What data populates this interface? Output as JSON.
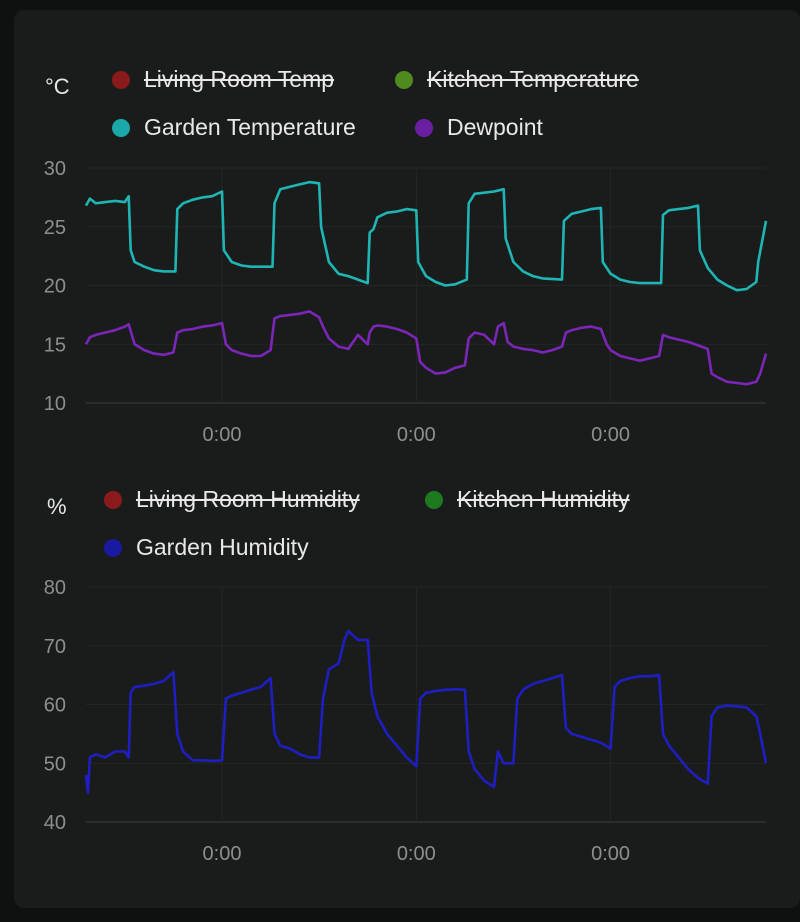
{
  "temperature_panel": {
    "unit": "°C",
    "legend": [
      {
        "label": "Living Room Temp",
        "color": "#8b1a1a",
        "hidden": true
      },
      {
        "label": "Kitchen Temperature",
        "color": "#4e8a1e",
        "hidden": true
      },
      {
        "label": "Garden Temperature",
        "color": "#1aa8a8",
        "hidden": false
      },
      {
        "label": "Dewpoint",
        "color": "#6a1fa3",
        "hidden": false
      }
    ]
  },
  "humidity_panel": {
    "unit": "%",
    "legend": [
      {
        "label": "Living Room Humidity",
        "color": "#8b1a1a",
        "hidden": true
      },
      {
        "label": "Kitchen Humidity",
        "color": "#1f7a1f",
        "hidden": true
      },
      {
        "label": "Garden Humidity",
        "color": "#1a1aa0",
        "hidden": false
      }
    ]
  },
  "chart_data": [
    {
      "type": "line",
      "ylabel": "°C",
      "ylim": [
        10,
        30
      ],
      "yticks": [
        10,
        15,
        20,
        25,
        30
      ],
      "xticks": [
        "0:00",
        "0:00",
        "0:00"
      ],
      "xlim": [
        0,
        3.5
      ],
      "xtick_positions": [
        0.7,
        1.7,
        2.7
      ],
      "grid": true,
      "series": [
        {
          "name": "Garden Temperature",
          "color": "#1fb5b5",
          "points": [
            [
              0,
              26.8
            ],
            [
              0.02,
              27.4
            ],
            [
              0.05,
              27
            ],
            [
              0.1,
              27.1
            ],
            [
              0.15,
              27.2
            ],
            [
              0.2,
              27.1
            ],
            [
              0.22,
              27.6
            ],
            [
              0.23,
              23
            ],
            [
              0.25,
              22
            ],
            [
              0.3,
              21.6
            ],
            [
              0.35,
              21.3
            ],
            [
              0.4,
              21.2
            ],
            [
              0.46,
              21.2
            ],
            [
              0.47,
              26.5
            ],
            [
              0.5,
              27
            ],
            [
              0.55,
              27.3
            ],
            [
              0.6,
              27.5
            ],
            [
              0.65,
              27.6
            ],
            [
              0.7,
              28
            ],
            [
              0.71,
              23
            ],
            [
              0.75,
              22
            ],
            [
              0.8,
              21.7
            ],
            [
              0.85,
              21.6
            ],
            [
              0.96,
              21.6
            ],
            [
              0.97,
              27
            ],
            [
              1.0,
              28.2
            ],
            [
              1.05,
              28.4
            ],
            [
              1.1,
              28.6
            ],
            [
              1.15,
              28.8
            ],
            [
              1.2,
              28.7
            ],
            [
              1.21,
              25
            ],
            [
              1.25,
              22
            ],
            [
              1.3,
              21
            ],
            [
              1.35,
              20.8
            ],
            [
              1.4,
              20.5
            ],
            [
              1.45,
              20.2
            ],
            [
              1.46,
              24.5
            ],
            [
              1.48,
              24.8
            ],
            [
              1.5,
              25.8
            ],
            [
              1.55,
              26.2
            ],
            [
              1.6,
              26.3
            ],
            [
              1.65,
              26.5
            ],
            [
              1.7,
              26.4
            ],
            [
              1.71,
              22
            ],
            [
              1.75,
              20.8
            ],
            [
              1.8,
              20.3
            ],
            [
              1.85,
              20
            ],
            [
              1.9,
              20.1
            ],
            [
              1.96,
              20.5
            ],
            [
              1.97,
              27
            ],
            [
              2.0,
              27.8
            ],
            [
              2.05,
              27.9
            ],
            [
              2.1,
              28
            ],
            [
              2.15,
              28.2
            ],
            [
              2.16,
              24
            ],
            [
              2.2,
              22
            ],
            [
              2.25,
              21.2
            ],
            [
              2.3,
              20.8
            ],
            [
              2.35,
              20.6
            ],
            [
              2.45,
              20.5
            ],
            [
              2.46,
              25.5
            ],
            [
              2.5,
              26.1
            ],
            [
              2.55,
              26.3
            ],
            [
              2.6,
              26.5
            ],
            [
              2.65,
              26.6
            ],
            [
              2.66,
              22
            ],
            [
              2.7,
              21
            ],
            [
              2.75,
              20.5
            ],
            [
              2.8,
              20.3
            ],
            [
              2.85,
              20.2
            ],
            [
              2.96,
              20.2
            ],
            [
              2.97,
              26
            ],
            [
              3.0,
              26.4
            ],
            [
              3.05,
              26.5
            ],
            [
              3.1,
              26.6
            ],
            [
              3.15,
              26.8
            ],
            [
              3.16,
              23
            ],
            [
              3.2,
              21.5
            ],
            [
              3.25,
              20.5
            ],
            [
              3.3,
              20
            ],
            [
              3.35,
              19.6
            ],
            [
              3.4,
              19.7
            ],
            [
              3.45,
              20.3
            ],
            [
              3.46,
              22
            ],
            [
              3.5,
              25.5
            ]
          ]
        },
        {
          "name": "Dewpoint",
          "color": "#7b26b8",
          "points": [
            [
              0,
              15
            ],
            [
              0.02,
              15.6
            ],
            [
              0.05,
              15.8
            ],
            [
              0.1,
              16
            ],
            [
              0.15,
              16.2
            ],
            [
              0.2,
              16.5
            ],
            [
              0.22,
              16.7
            ],
            [
              0.25,
              15
            ],
            [
              0.3,
              14.5
            ],
            [
              0.35,
              14.2
            ],
            [
              0.4,
              14.1
            ],
            [
              0.45,
              14.3
            ],
            [
              0.47,
              16
            ],
            [
              0.5,
              16.2
            ],
            [
              0.55,
              16.3
            ],
            [
              0.6,
              16.5
            ],
            [
              0.65,
              16.6
            ],
            [
              0.7,
              16.8
            ],
            [
              0.72,
              15
            ],
            [
              0.75,
              14.5
            ],
            [
              0.8,
              14.2
            ],
            [
              0.85,
              14
            ],
            [
              0.9,
              14
            ],
            [
              0.95,
              14.5
            ],
            [
              0.97,
              17.2
            ],
            [
              1.0,
              17.4
            ],
            [
              1.05,
              17.5
            ],
            [
              1.1,
              17.6
            ],
            [
              1.15,
              17.8
            ],
            [
              1.2,
              17.3
            ],
            [
              1.22,
              16.5
            ],
            [
              1.25,
              15.5
            ],
            [
              1.3,
              14.8
            ],
            [
              1.35,
              14.6
            ],
            [
              1.4,
              15.8
            ],
            [
              1.45,
              15
            ],
            [
              1.46,
              16
            ],
            [
              1.48,
              16.5
            ],
            [
              1.5,
              16.6
            ],
            [
              1.55,
              16.5
            ],
            [
              1.6,
              16.3
            ],
            [
              1.65,
              16
            ],
            [
              1.7,
              15.5
            ],
            [
              1.72,
              13.5
            ],
            [
              1.75,
              13
            ],
            [
              1.8,
              12.5
            ],
            [
              1.85,
              12.6
            ],
            [
              1.9,
              13
            ],
            [
              1.95,
              13.2
            ],
            [
              1.97,
              15.5
            ],
            [
              2.0,
              16
            ],
            [
              2.05,
              15.8
            ],
            [
              2.1,
              15
            ],
            [
              2.12,
              16.5
            ],
            [
              2.15,
              16.8
            ],
            [
              2.17,
              15.2
            ],
            [
              2.2,
              14.8
            ],
            [
              2.25,
              14.6
            ],
            [
              2.3,
              14.5
            ],
            [
              2.35,
              14.3
            ],
            [
              2.4,
              14.5
            ],
            [
              2.45,
              14.8
            ],
            [
              2.47,
              16
            ],
            [
              2.5,
              16.2
            ],
            [
              2.55,
              16.4
            ],
            [
              2.6,
              16.5
            ],
            [
              2.65,
              16.3
            ],
            [
              2.68,
              15
            ],
            [
              2.7,
              14.5
            ],
            [
              2.75,
              14
            ],
            [
              2.8,
              13.8
            ],
            [
              2.85,
              13.6
            ],
            [
              2.9,
              13.8
            ],
            [
              2.95,
              14
            ],
            [
              2.97,
              15.8
            ],
            [
              3.0,
              15.6
            ],
            [
              3.05,
              15.4
            ],
            [
              3.1,
              15.2
            ],
            [
              3.15,
              14.9
            ],
            [
              3.2,
              14.6
            ],
            [
              3.22,
              12.5
            ],
            [
              3.25,
              12.2
            ],
            [
              3.3,
              11.8
            ],
            [
              3.35,
              11.7
            ],
            [
              3.4,
              11.6
            ],
            [
              3.45,
              11.8
            ],
            [
              3.47,
              12.5
            ],
            [
              3.5,
              14.2
            ]
          ]
        }
      ]
    },
    {
      "type": "line",
      "ylabel": "%",
      "ylim": [
        40,
        80
      ],
      "yticks": [
        40,
        50,
        60,
        70,
        80
      ],
      "xticks": [
        "0:00",
        "0:00",
        "0:00"
      ],
      "xlim": [
        0,
        3.5
      ],
      "xtick_positions": [
        0.7,
        1.7,
        2.7
      ],
      "grid": true,
      "series": [
        {
          "name": "Garden Humidity",
          "color": "#1e1ec2",
          "points": [
            [
              0,
              48
            ],
            [
              0.01,
              45
            ],
            [
              0.02,
              51
            ],
            [
              0.05,
              51.5
            ],
            [
              0.1,
              51
            ],
            [
              0.15,
              52
            ],
            [
              0.2,
              52
            ],
            [
              0.22,
              51
            ],
            [
              0.23,
              62
            ],
            [
              0.25,
              63
            ],
            [
              0.3,
              63.2
            ],
            [
              0.35,
              63.5
            ],
            [
              0.4,
              64
            ],
            [
              0.45,
              65.5
            ],
            [
              0.47,
              55
            ],
            [
              0.5,
              52
            ],
            [
              0.55,
              50.5
            ],
            [
              0.6,
              50.5
            ],
            [
              0.65,
              50.4
            ],
            [
              0.7,
              50.5
            ],
            [
              0.72,
              61
            ],
            [
              0.75,
              61.5
            ],
            [
              0.8,
              62
            ],
            [
              0.85,
              62.5
            ],
            [
              0.9,
              63
            ],
            [
              0.95,
              64.5
            ],
            [
              0.97,
              55
            ],
            [
              1.0,
              53
            ],
            [
              1.05,
              52.5
            ],
            [
              1.1,
              51.5
            ],
            [
              1.15,
              51
            ],
            [
              1.2,
              51
            ],
            [
              1.22,
              61
            ],
            [
              1.25,
              66
            ],
            [
              1.3,
              67
            ],
            [
              1.33,
              71
            ],
            [
              1.35,
              72.5
            ],
            [
              1.4,
              71
            ],
            [
              1.45,
              71
            ],
            [
              1.47,
              62
            ],
            [
              1.5,
              58
            ],
            [
              1.55,
              55
            ],
            [
              1.6,
              53
            ],
            [
              1.65,
              51
            ],
            [
              1.7,
              49.5
            ],
            [
              1.72,
              61
            ],
            [
              1.75,
              62
            ],
            [
              1.8,
              62.3
            ],
            [
              1.85,
              62.5
            ],
            [
              1.9,
              62.6
            ],
            [
              1.95,
              62.5
            ],
            [
              1.97,
              52
            ],
            [
              2.0,
              49
            ],
            [
              2.05,
              47
            ],
            [
              2.1,
              46
            ],
            [
              2.12,
              52
            ],
            [
              2.15,
              50
            ],
            [
              2.2,
              50
            ],
            [
              2.22,
              61
            ],
            [
              2.25,
              62.5
            ],
            [
              2.3,
              63.5
            ],
            [
              2.35,
              64
            ],
            [
              2.4,
              64.5
            ],
            [
              2.45,
              65
            ],
            [
              2.47,
              56
            ],
            [
              2.5,
              55
            ],
            [
              2.55,
              54.5
            ],
            [
              2.6,
              54
            ],
            [
              2.65,
              53.5
            ],
            [
              2.7,
              52.5
            ],
            [
              2.72,
              63
            ],
            [
              2.75,
              64
            ],
            [
              2.8,
              64.5
            ],
            [
              2.85,
              64.8
            ],
            [
              2.9,
              64.8
            ],
            [
              2.95,
              65
            ],
            [
              2.97,
              55
            ],
            [
              3.0,
              53
            ],
            [
              3.05,
              51
            ],
            [
              3.1,
              49
            ],
            [
              3.15,
              47.5
            ],
            [
              3.2,
              46.5
            ],
            [
              3.22,
              58
            ],
            [
              3.25,
              59.5
            ],
            [
              3.3,
              59.8
            ],
            [
              3.35,
              59.7
            ],
            [
              3.4,
              59.5
            ],
            [
              3.45,
              58
            ],
            [
              3.47,
              55
            ],
            [
              3.5,
              50
            ]
          ]
        }
      ]
    }
  ]
}
